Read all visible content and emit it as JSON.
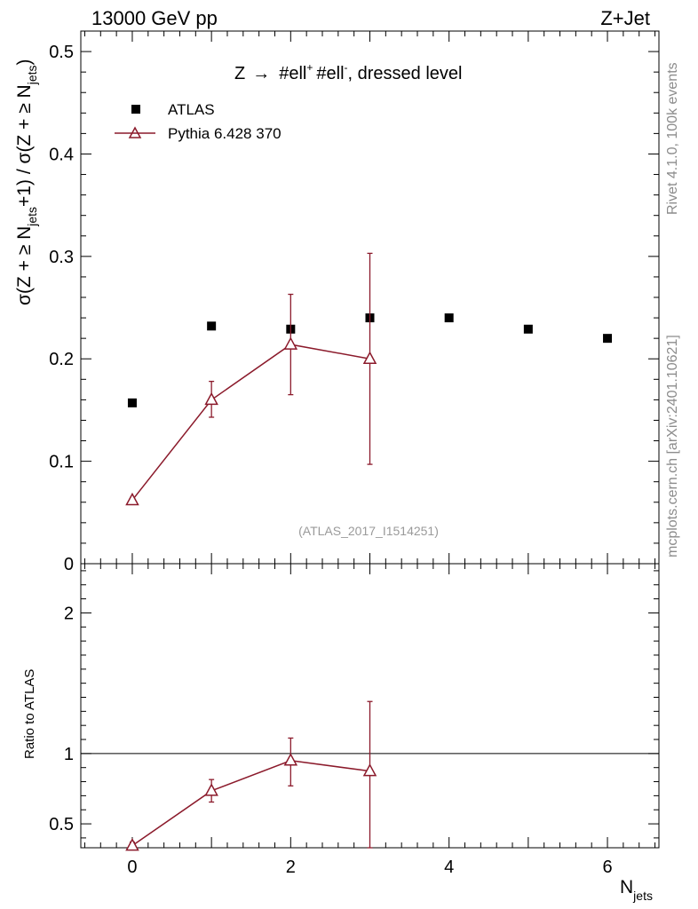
{
  "header": {
    "left": "13000 GeV pp",
    "right": "Z+Jet"
  },
  "side_labels": {
    "rivet": "Rivet 4.1.0,  100k events",
    "mcplots": "mcplots.cern.ch [arXiv:2401.10621]"
  },
  "chart_data": [
    {
      "type": "scatter",
      "panel": "main",
      "title": "Z → #ell⁺ #ell⁻, dressed level",
      "title_parts": {
        "pre": "Z",
        "arrow": "→",
        "ell1": "#ell",
        "sup1": "+",
        "ell2": "#ell",
        "sup2": "-",
        "post": ", dressed level"
      },
      "ylabel": "σ(Z + ≥ N_jets +1) / σ(Z + ≥ N_jets)",
      "ylabel_parts": {
        "p1": "σ(Z + ≥ N",
        "sub1": "jets",
        "p2": "+1) / σ(Z + ≥ N",
        "sub2": "jets",
        "p3": ")"
      },
      "watermark": "(ATLAS_2017_I1514251)",
      "xlim": [
        -0.65,
        6.65
      ],
      "ylim": [
        0,
        0.52
      ],
      "y_ticks": [
        {
          "v": 0,
          "label": "0"
        },
        {
          "v": 0.1,
          "label": "0.1"
        },
        {
          "v": 0.2,
          "label": "0.2"
        },
        {
          "v": 0.3,
          "label": "0.3"
        },
        {
          "v": 0.4,
          "label": "0.4"
        },
        {
          "v": 0.5,
          "label": "0.5"
        }
      ],
      "legend": {
        "position": "top-left",
        "entries": [
          "ATLAS",
          "Pythia 6.428 370"
        ]
      },
      "series": [
        {
          "name": "ATLAS",
          "marker": "filled-square",
          "color": "#000000",
          "x": [
            0,
            1,
            2,
            3,
            4,
            5,
            6
          ],
          "y": [
            0.157,
            0.232,
            0.229,
            0.24,
            0.24,
            0.229,
            0.22
          ]
        },
        {
          "name": "Pythia 6.428 370",
          "marker": "open-triangle",
          "color": "#8b1a2b",
          "x": [
            0,
            1,
            2,
            3
          ],
          "y": [
            0.062,
            0.16,
            0.214,
            0.2
          ],
          "err_low": [
            0.062,
            0.143,
            0.165,
            0.097
          ],
          "err_high": [
            0.062,
            0.178,
            0.263,
            0.303
          ]
        }
      ]
    },
    {
      "type": "line",
      "panel": "ratio",
      "ylabel": "Ratio to ATLAS",
      "xlabel": "N_jets",
      "xlabel_parts": {
        "main": "N",
        "sub": "jets"
      },
      "xlim": [
        -0.65,
        6.65
      ],
      "ylim": [
        0.33,
        2.35
      ],
      "reference_line": 1,
      "x_ticks": [
        {
          "v": 0,
          "label": "0"
        },
        {
          "v": 2,
          "label": "2"
        },
        {
          "v": 4,
          "label": "4"
        },
        {
          "v": 6,
          "label": "6"
        }
      ],
      "y_ticks": [
        {
          "v": 0.5,
          "label": "0.5"
        },
        {
          "v": 1,
          "label": "1"
        },
        {
          "v": 2,
          "label": "2"
        }
      ],
      "series": [
        {
          "name": "Pythia 6.428 370 / ATLAS",
          "marker": "open-triangle",
          "color": "#8b1a2b",
          "x": [
            0,
            1,
            2,
            3
          ],
          "y": [
            0.345,
            0.735,
            0.95,
            0.875
          ],
          "err_low": [
            0.33,
            0.655,
            0.77,
            0.33
          ],
          "err_high": [
            0.37,
            0.815,
            1.11,
            1.37
          ]
        }
      ]
    }
  ]
}
